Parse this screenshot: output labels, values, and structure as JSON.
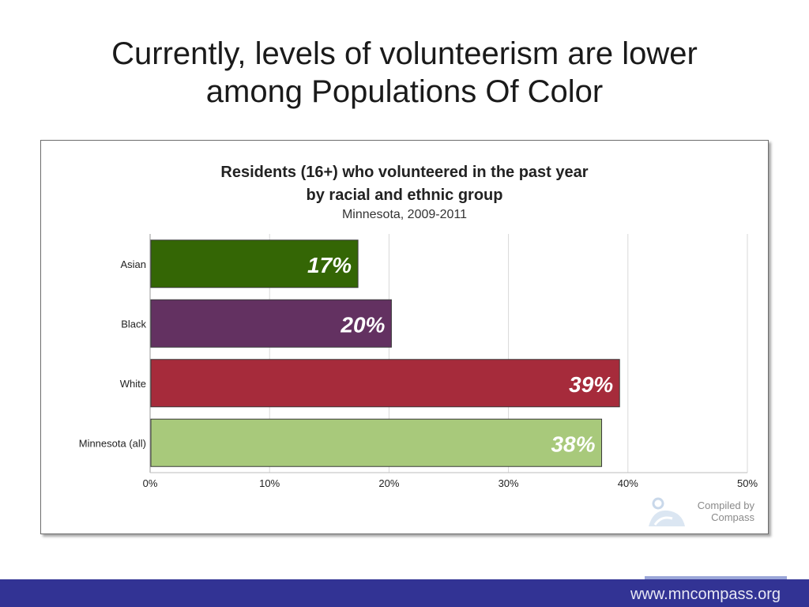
{
  "slide": {
    "title_line1": "Currently, levels of volunteerism are lower",
    "title_line2": "among Populations Of Color",
    "footer_url": "www.mncompass.org"
  },
  "chart": {
    "credit_line1": "Compiled by",
    "credit_line2": "Compass"
  },
  "chart_data": {
    "type": "bar",
    "orientation": "horizontal",
    "title": "Residents (16+) who volunteered in the past year by racial and ethnic group",
    "title_line1": "Residents (16+) who volunteered in the past year",
    "title_line2": "by racial and ethnic group",
    "subtitle": "Minnesota, 2009-2011",
    "categories": [
      "Asian",
      "Black",
      "White",
      "Minnesota (all)"
    ],
    "values": [
      17.4,
      20.2,
      39.3,
      37.8
    ],
    "data_labels": [
      "17%",
      "20%",
      "39%",
      "38%"
    ],
    "colors": [
      "#346605",
      "#633161",
      "#a62b3b",
      "#a8c97b"
    ],
    "x_ticks": [
      "0%",
      "10%",
      "20%",
      "30%",
      "40%",
      "50%"
    ],
    "xlim": [
      0,
      50
    ],
    "grid": true,
    "legend": "none"
  }
}
